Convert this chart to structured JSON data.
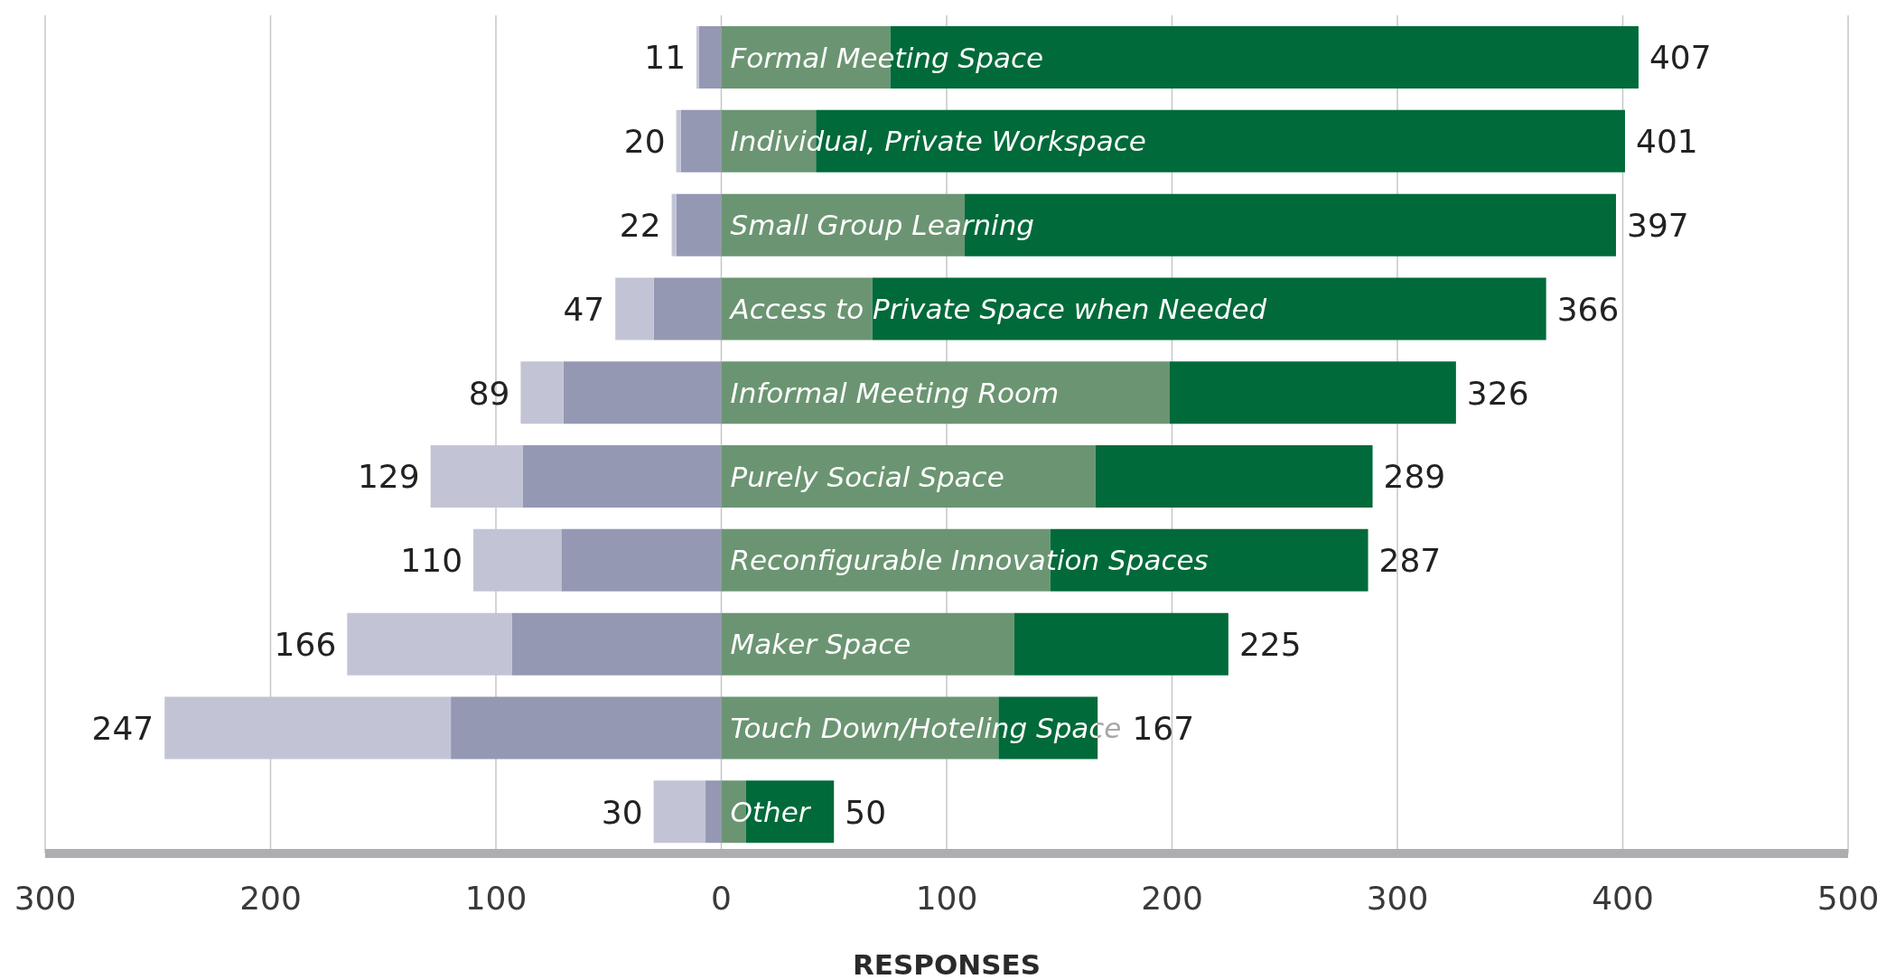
{
  "chart_data": {
    "type": "bar",
    "orientation": "horizontal",
    "stacked": true,
    "grid": "x",
    "xlabel": "RESPONSES",
    "categories": [
      "Formal Meeting Space",
      "Individual, Private Workspace",
      "Small Group Learning",
      "Access to Private Space when Needed",
      "Informal Meeting Room",
      "Purely Social Space",
      "Reconfigurable Innovation Spaces",
      "Maker Space",
      "Touch Down/Hoteling Space",
      "Other"
    ],
    "series": [
      {
        "color": "#9598b3",
        "values": [
          -10,
          -18,
          -20,
          -30,
          -70,
          -88,
          -71,
          -93,
          -120,
          -7
        ]
      },
      {
        "color": "#c2c4d6",
        "values": [
          -1,
          -2,
          -2,
          -17,
          -19,
          -41,
          -39,
          -73,
          -127,
          -23
        ]
      },
      {
        "color": "#6b9572",
        "values": [
          75,
          42,
          108,
          67,
          199,
          166,
          146,
          130,
          123,
          11
        ]
      },
      {
        "color": "#016a3a",
        "values": [
          332,
          359,
          289,
          299,
          127,
          123,
          141,
          95,
          44,
          39
        ]
      }
    ],
    "totals": [
      [
        "11",
        "407"
      ],
      [
        "20",
        "401"
      ],
      [
        "22",
        "397"
      ],
      [
        "47",
        "366"
      ],
      [
        "89",
        "326"
      ],
      [
        "129",
        "289"
      ],
      [
        "110",
        "287"
      ],
      [
        "166",
        "225"
      ],
      [
        "247",
        "167"
      ],
      [
        "30",
        "50"
      ]
    ],
    "xlim": [
      -300,
      500
    ],
    "xticks": [
      {
        "value": -300,
        "label": "300"
      },
      {
        "value": -200,
        "label": "200"
      },
      {
        "value": -100,
        "label": "100"
      },
      0,
      100,
      200,
      300,
      400,
      500
    ]
  }
}
